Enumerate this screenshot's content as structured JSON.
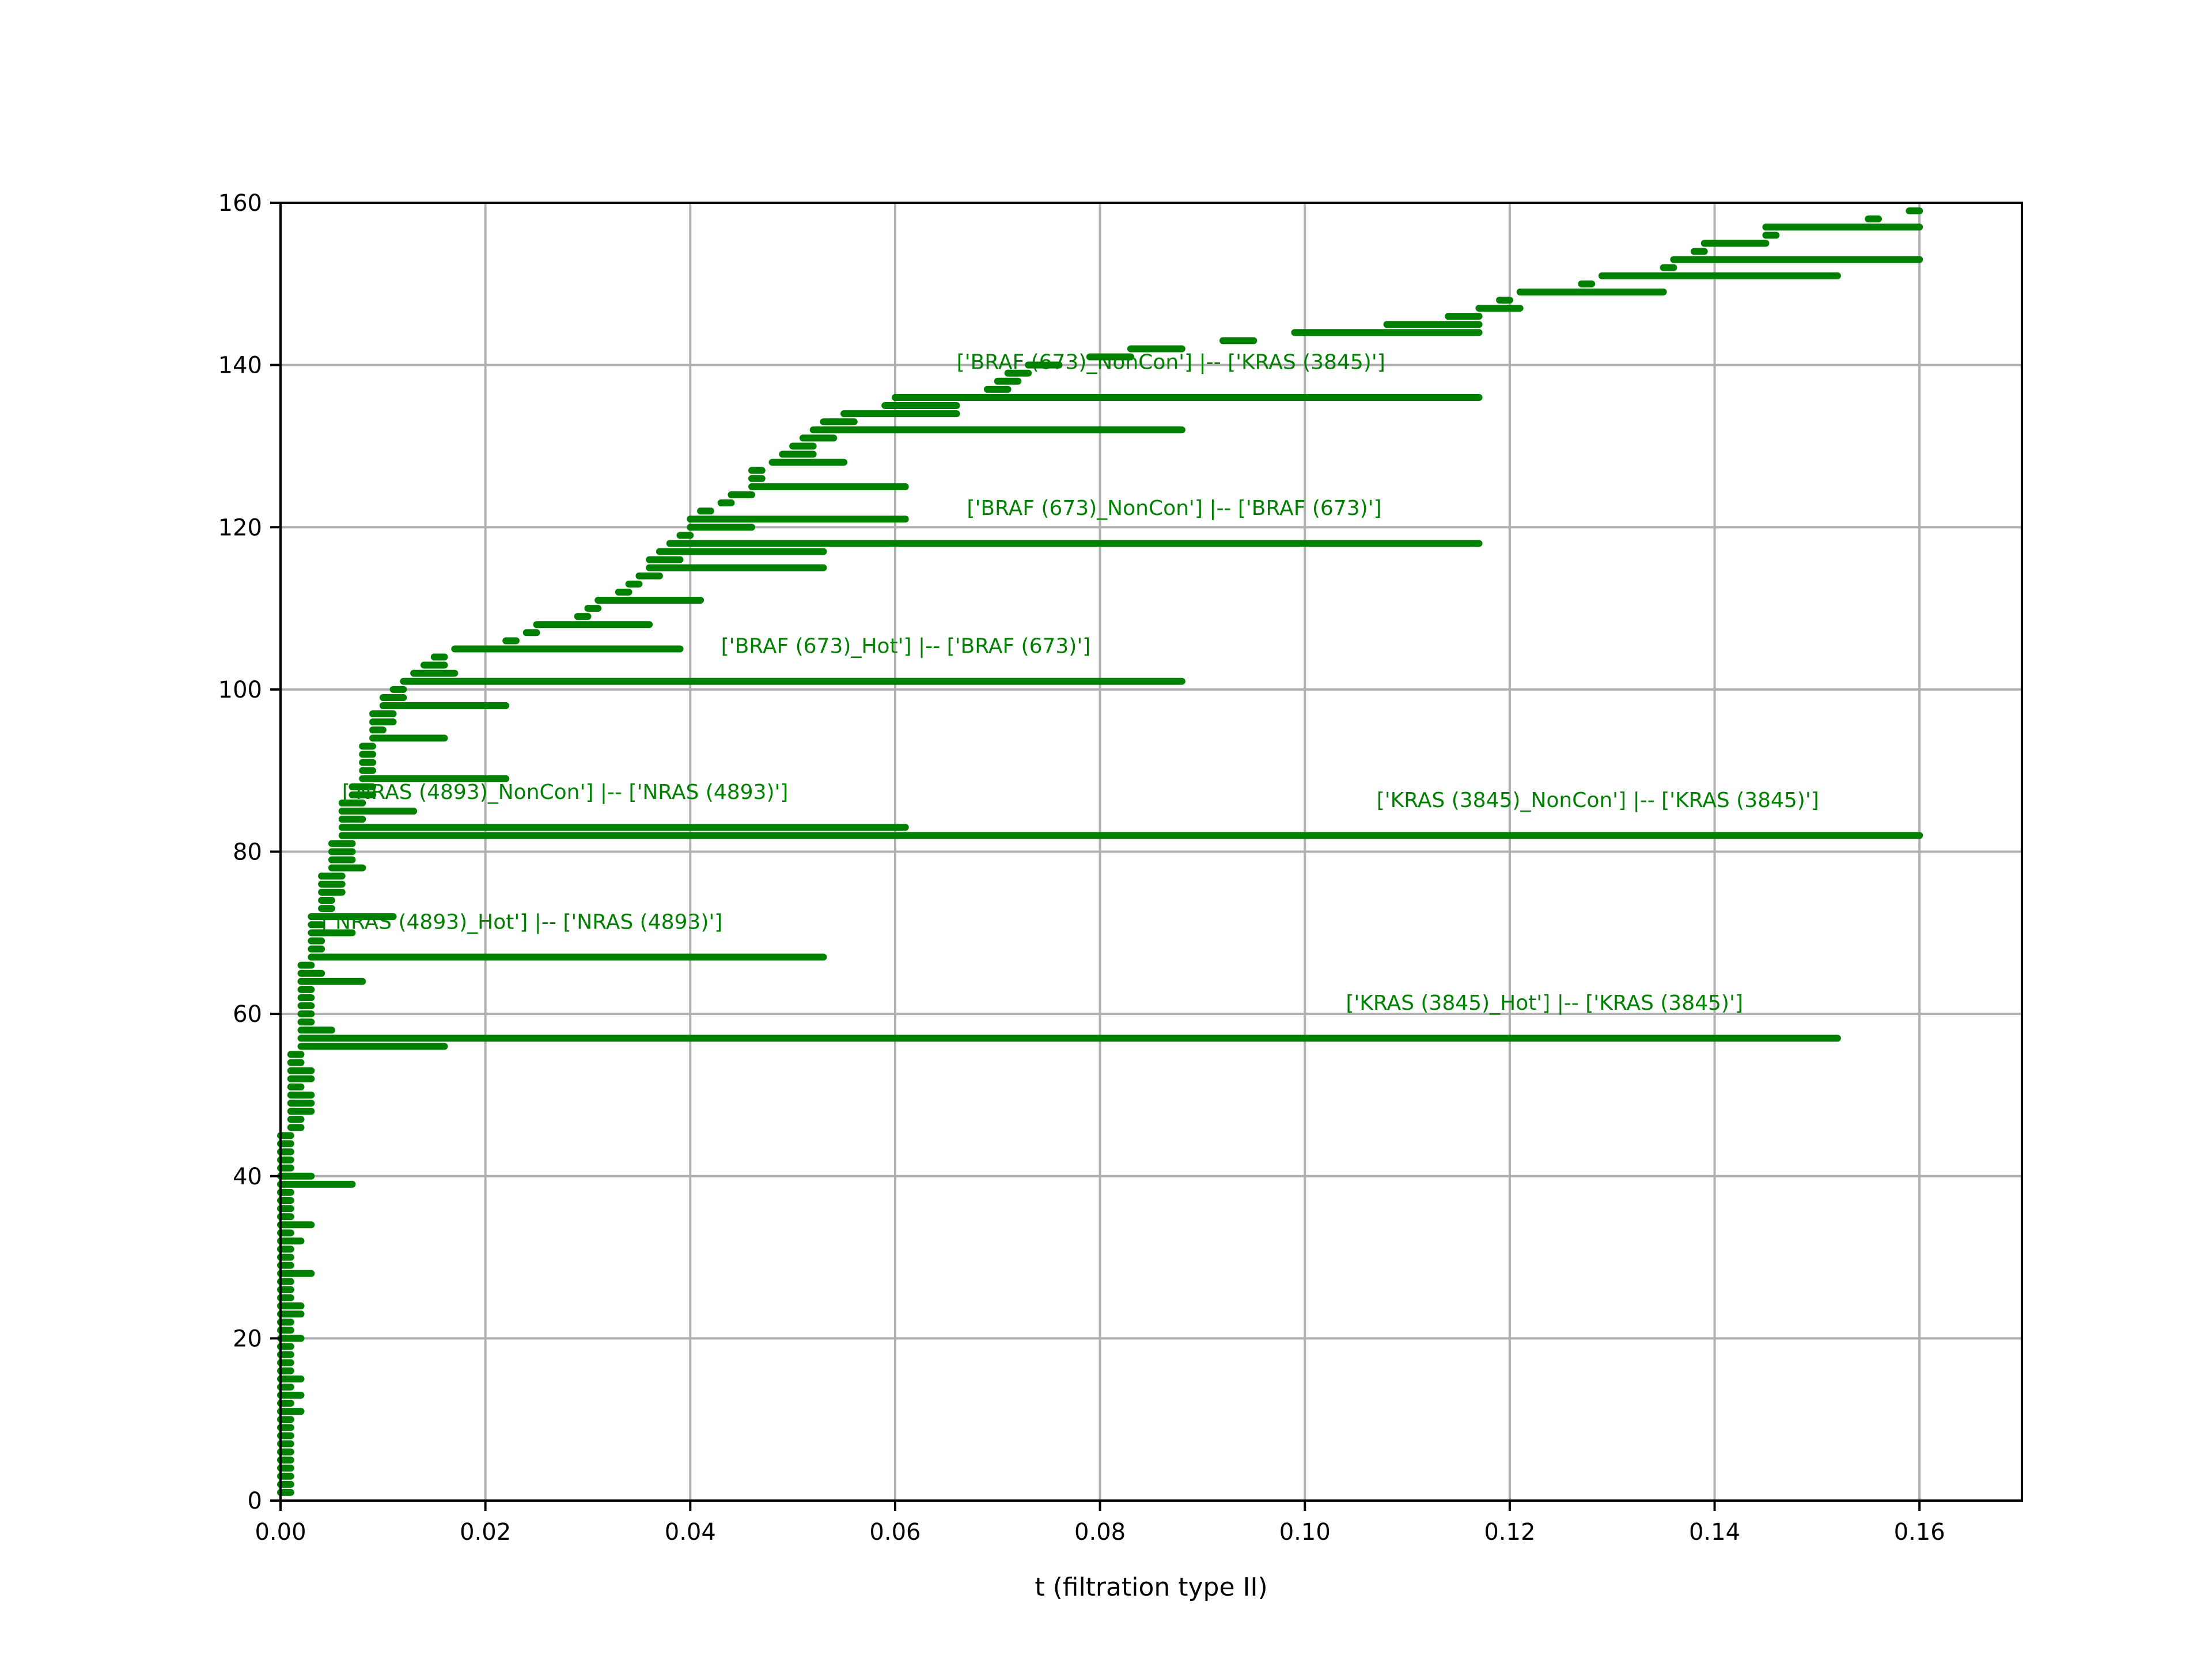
{
  "chart_data": {
    "type": "barcode",
    "title": "",
    "xlabel": "t (filtration type II)",
    "ylabel": "",
    "xlim": [
      0.0,
      0.17
    ],
    "ylim": [
      0,
      160
    ],
    "xticks": [
      "0.00",
      "0.02",
      "0.04",
      "0.06",
      "0.08",
      "0.10",
      "0.12",
      "0.14",
      "0.16"
    ],
    "xtick_values": [
      0.0,
      0.02,
      0.04,
      0.06,
      0.08,
      0.1,
      0.12,
      0.14,
      0.16
    ],
    "yticks": [
      "0",
      "20",
      "40",
      "60",
      "80",
      "100",
      "120",
      "140",
      "160"
    ],
    "ytick_values": [
      0,
      20,
      40,
      60,
      80,
      100,
      120,
      140,
      160
    ],
    "grid": true,
    "bar_color": "#008000",
    "grid_color": "#b0b0b0",
    "bars": [
      {
        "index": 1,
        "start": 0.0,
        "end": 0.001
      },
      {
        "index": 2,
        "start": 0.0,
        "end": 0.001
      },
      {
        "index": 3,
        "start": 0.0,
        "end": 0.001
      },
      {
        "index": 4,
        "start": 0.0,
        "end": 0.001
      },
      {
        "index": 5,
        "start": 0.0,
        "end": 0.001
      },
      {
        "index": 6,
        "start": 0.0,
        "end": 0.001
      },
      {
        "index": 7,
        "start": 0.0,
        "end": 0.001
      },
      {
        "index": 8,
        "start": 0.0,
        "end": 0.001
      },
      {
        "index": 9,
        "start": 0.0,
        "end": 0.001
      },
      {
        "index": 10,
        "start": 0.0,
        "end": 0.001
      },
      {
        "index": 11,
        "start": 0.0,
        "end": 0.002
      },
      {
        "index": 12,
        "start": 0.0,
        "end": 0.001
      },
      {
        "index": 13,
        "start": 0.0,
        "end": 0.002
      },
      {
        "index": 14,
        "start": 0.0,
        "end": 0.001
      },
      {
        "index": 15,
        "start": 0.0,
        "end": 0.002
      },
      {
        "index": 16,
        "start": 0.0,
        "end": 0.001
      },
      {
        "index": 17,
        "start": 0.0,
        "end": 0.001
      },
      {
        "index": 18,
        "start": 0.0,
        "end": 0.001
      },
      {
        "index": 19,
        "start": 0.0,
        "end": 0.001
      },
      {
        "index": 20,
        "start": 0.0,
        "end": 0.002
      },
      {
        "index": 21,
        "start": 0.0,
        "end": 0.001
      },
      {
        "index": 22,
        "start": 0.0,
        "end": 0.001
      },
      {
        "index": 23,
        "start": 0.0,
        "end": 0.002
      },
      {
        "index": 24,
        "start": 0.0,
        "end": 0.002
      },
      {
        "index": 25,
        "start": 0.0,
        "end": 0.001
      },
      {
        "index": 26,
        "start": 0.0,
        "end": 0.001
      },
      {
        "index": 27,
        "start": 0.0,
        "end": 0.001
      },
      {
        "index": 28,
        "start": 0.0,
        "end": 0.003
      },
      {
        "index": 29,
        "start": 0.0,
        "end": 0.001
      },
      {
        "index": 30,
        "start": 0.0,
        "end": 0.001
      },
      {
        "index": 31,
        "start": 0.0,
        "end": 0.001
      },
      {
        "index": 32,
        "start": 0.0,
        "end": 0.002
      },
      {
        "index": 33,
        "start": 0.0,
        "end": 0.001
      },
      {
        "index": 34,
        "start": 0.0,
        "end": 0.003
      },
      {
        "index": 35,
        "start": 0.0,
        "end": 0.001
      },
      {
        "index": 36,
        "start": 0.0,
        "end": 0.001
      },
      {
        "index": 37,
        "start": 0.0,
        "end": 0.001
      },
      {
        "index": 38,
        "start": 0.0,
        "end": 0.001
      },
      {
        "index": 39,
        "start": 0.0,
        "end": 0.007
      },
      {
        "index": 40,
        "start": 0.0,
        "end": 0.003
      },
      {
        "index": 41,
        "start": 0.0,
        "end": 0.001
      },
      {
        "index": 42,
        "start": 0.0,
        "end": 0.001
      },
      {
        "index": 43,
        "start": 0.0,
        "end": 0.001
      },
      {
        "index": 44,
        "start": 0.0,
        "end": 0.001
      },
      {
        "index": 45,
        "start": 0.0,
        "end": 0.001
      },
      {
        "index": 46,
        "start": 0.001,
        "end": 0.002
      },
      {
        "index": 47,
        "start": 0.001,
        "end": 0.002
      },
      {
        "index": 48,
        "start": 0.001,
        "end": 0.003
      },
      {
        "index": 49,
        "start": 0.001,
        "end": 0.003
      },
      {
        "index": 50,
        "start": 0.001,
        "end": 0.003
      },
      {
        "index": 51,
        "start": 0.001,
        "end": 0.002
      },
      {
        "index": 52,
        "start": 0.001,
        "end": 0.003
      },
      {
        "index": 53,
        "start": 0.001,
        "end": 0.003
      },
      {
        "index": 54,
        "start": 0.001,
        "end": 0.002
      },
      {
        "index": 55,
        "start": 0.001,
        "end": 0.002
      },
      {
        "index": 56,
        "start": 0.002,
        "end": 0.016
      },
      {
        "index": 57,
        "start": 0.002,
        "end": 0.152
      },
      {
        "index": 58,
        "start": 0.002,
        "end": 0.005
      },
      {
        "index": 59,
        "start": 0.002,
        "end": 0.003
      },
      {
        "index": 60,
        "start": 0.002,
        "end": 0.003
      },
      {
        "index": 61,
        "start": 0.002,
        "end": 0.003
      },
      {
        "index": 62,
        "start": 0.002,
        "end": 0.003
      },
      {
        "index": 63,
        "start": 0.002,
        "end": 0.003
      },
      {
        "index": 64,
        "start": 0.002,
        "end": 0.008
      },
      {
        "index": 65,
        "start": 0.002,
        "end": 0.004
      },
      {
        "index": 66,
        "start": 0.002,
        "end": 0.003
      },
      {
        "index": 67,
        "start": 0.003,
        "end": 0.053
      },
      {
        "index": 68,
        "start": 0.003,
        "end": 0.004
      },
      {
        "index": 69,
        "start": 0.003,
        "end": 0.004
      },
      {
        "index": 70,
        "start": 0.003,
        "end": 0.007
      },
      {
        "index": 71,
        "start": 0.003,
        "end": 0.004
      },
      {
        "index": 72,
        "start": 0.003,
        "end": 0.011
      },
      {
        "index": 73,
        "start": 0.004,
        "end": 0.005
      },
      {
        "index": 74,
        "start": 0.004,
        "end": 0.005
      },
      {
        "index": 75,
        "start": 0.004,
        "end": 0.006
      },
      {
        "index": 76,
        "start": 0.004,
        "end": 0.006
      },
      {
        "index": 77,
        "start": 0.004,
        "end": 0.006
      },
      {
        "index": 78,
        "start": 0.005,
        "end": 0.008
      },
      {
        "index": 79,
        "start": 0.005,
        "end": 0.007
      },
      {
        "index": 80,
        "start": 0.005,
        "end": 0.007
      },
      {
        "index": 81,
        "start": 0.005,
        "end": 0.007
      },
      {
        "index": 82,
        "start": 0.006,
        "end": 0.16
      },
      {
        "index": 83,
        "start": 0.006,
        "end": 0.061
      },
      {
        "index": 84,
        "start": 0.006,
        "end": 0.008
      },
      {
        "index": 85,
        "start": 0.006,
        "end": 0.013
      },
      {
        "index": 86,
        "start": 0.006,
        "end": 0.008
      },
      {
        "index": 87,
        "start": 0.007,
        "end": 0.009
      },
      {
        "index": 88,
        "start": 0.007,
        "end": 0.009
      },
      {
        "index": 89,
        "start": 0.008,
        "end": 0.022
      },
      {
        "index": 90,
        "start": 0.008,
        "end": 0.009
      },
      {
        "index": 91,
        "start": 0.008,
        "end": 0.009
      },
      {
        "index": 92,
        "start": 0.008,
        "end": 0.009
      },
      {
        "index": 93,
        "start": 0.008,
        "end": 0.009
      },
      {
        "index": 94,
        "start": 0.009,
        "end": 0.016
      },
      {
        "index": 95,
        "start": 0.009,
        "end": 0.01
      },
      {
        "index": 96,
        "start": 0.009,
        "end": 0.011
      },
      {
        "index": 97,
        "start": 0.009,
        "end": 0.011
      },
      {
        "index": 98,
        "start": 0.01,
        "end": 0.022
      },
      {
        "index": 99,
        "start": 0.01,
        "end": 0.012
      },
      {
        "index": 100,
        "start": 0.011,
        "end": 0.012
      },
      {
        "index": 101,
        "start": 0.012,
        "end": 0.088
      },
      {
        "index": 102,
        "start": 0.013,
        "end": 0.017
      },
      {
        "index": 103,
        "start": 0.014,
        "end": 0.016
      },
      {
        "index": 104,
        "start": 0.015,
        "end": 0.016
      },
      {
        "index": 105,
        "start": 0.017,
        "end": 0.039
      },
      {
        "index": 106,
        "start": 0.022,
        "end": 0.023
      },
      {
        "index": 107,
        "start": 0.024,
        "end": 0.025
      },
      {
        "index": 108,
        "start": 0.025,
        "end": 0.036
      },
      {
        "index": 109,
        "start": 0.029,
        "end": 0.03
      },
      {
        "index": 110,
        "start": 0.03,
        "end": 0.031
      },
      {
        "index": 111,
        "start": 0.031,
        "end": 0.041
      },
      {
        "index": 112,
        "start": 0.033,
        "end": 0.034
      },
      {
        "index": 113,
        "start": 0.034,
        "end": 0.035
      },
      {
        "index": 114,
        "start": 0.035,
        "end": 0.037
      },
      {
        "index": 115,
        "start": 0.036,
        "end": 0.053
      },
      {
        "index": 116,
        "start": 0.036,
        "end": 0.039
      },
      {
        "index": 117,
        "start": 0.037,
        "end": 0.053
      },
      {
        "index": 118,
        "start": 0.038,
        "end": 0.117
      },
      {
        "index": 119,
        "start": 0.039,
        "end": 0.04
      },
      {
        "index": 120,
        "start": 0.04,
        "end": 0.046
      },
      {
        "index": 121,
        "start": 0.04,
        "end": 0.061
      },
      {
        "index": 122,
        "start": 0.041,
        "end": 0.042
      },
      {
        "index": 123,
        "start": 0.043,
        "end": 0.044
      },
      {
        "index": 124,
        "start": 0.044,
        "end": 0.046
      },
      {
        "index": 125,
        "start": 0.046,
        "end": 0.061
      },
      {
        "index": 126,
        "start": 0.046,
        "end": 0.047
      },
      {
        "index": 127,
        "start": 0.046,
        "end": 0.047
      },
      {
        "index": 128,
        "start": 0.048,
        "end": 0.055
      },
      {
        "index": 129,
        "start": 0.049,
        "end": 0.052
      },
      {
        "index": 130,
        "start": 0.05,
        "end": 0.052
      },
      {
        "index": 131,
        "start": 0.051,
        "end": 0.054
      },
      {
        "index": 132,
        "start": 0.052,
        "end": 0.088
      },
      {
        "index": 133,
        "start": 0.053,
        "end": 0.056
      },
      {
        "index": 134,
        "start": 0.055,
        "end": 0.066
      },
      {
        "index": 135,
        "start": 0.059,
        "end": 0.066
      },
      {
        "index": 136,
        "start": 0.06,
        "end": 0.117
      },
      {
        "index": 137,
        "start": 0.069,
        "end": 0.071
      },
      {
        "index": 138,
        "start": 0.07,
        "end": 0.072
      },
      {
        "index": 139,
        "start": 0.071,
        "end": 0.073
      },
      {
        "index": 140,
        "start": 0.073,
        "end": 0.076
      },
      {
        "index": 141,
        "start": 0.079,
        "end": 0.083
      },
      {
        "index": 142,
        "start": 0.083,
        "end": 0.088
      },
      {
        "index": 143,
        "start": 0.092,
        "end": 0.095
      },
      {
        "index": 144,
        "start": 0.099,
        "end": 0.117
      },
      {
        "index": 145,
        "start": 0.108,
        "end": 0.117
      },
      {
        "index": 146,
        "start": 0.114,
        "end": 0.117
      },
      {
        "index": 147,
        "start": 0.117,
        "end": 0.121
      },
      {
        "index": 148,
        "start": 0.119,
        "end": 0.12
      },
      {
        "index": 149,
        "start": 0.121,
        "end": 0.135
      },
      {
        "index": 150,
        "start": 0.127,
        "end": 0.128
      },
      {
        "index": 151,
        "start": 0.129,
        "end": 0.152
      },
      {
        "index": 152,
        "start": 0.135,
        "end": 0.136
      },
      {
        "index": 153,
        "start": 0.136,
        "end": 0.16
      },
      {
        "index": 154,
        "start": 0.138,
        "end": 0.139
      },
      {
        "index": 155,
        "start": 0.139,
        "end": 0.145
      },
      {
        "index": 156,
        "start": 0.145,
        "end": 0.146
      },
      {
        "index": 157,
        "start": 0.145,
        "end": 0.16
      },
      {
        "index": 158,
        "start": 0.155,
        "end": 0.156
      },
      {
        "index": 159,
        "start": 0.159,
        "end": 0.16
      }
    ],
    "annotations": [
      {
        "text": "['BRAF (673)_NonCon'] |-- ['KRAS (3845)']",
        "x": 0.066,
        "y": 139.5
      },
      {
        "text": "['BRAF (673)_NonCon'] |-- ['BRAF (673)']",
        "x": 0.067,
        "y": 121.5
      },
      {
        "text": "['BRAF (673)_Hot'] |-- ['BRAF (673)']",
        "x": 0.043,
        "y": 104.5
      },
      {
        "text": "['NRAS (4893)_NonCon'] |-- ['NRAS (4893)']",
        "x": 0.006,
        "y": 86.5
      },
      {
        "text": "['KRAS (3845)_NonCon'] |-- ['KRAS (3845)']",
        "x": 0.107,
        "y": 85.5
      },
      {
        "text": "['NRAS (4893)_Hot'] |-- ['NRAS (4893)']",
        "x": 0.004,
        "y": 70.5
      },
      {
        "text": "['KRAS (3845)_Hot'] |-- ['KRAS (3845)']",
        "x": 0.104,
        "y": 60.5
      }
    ]
  }
}
